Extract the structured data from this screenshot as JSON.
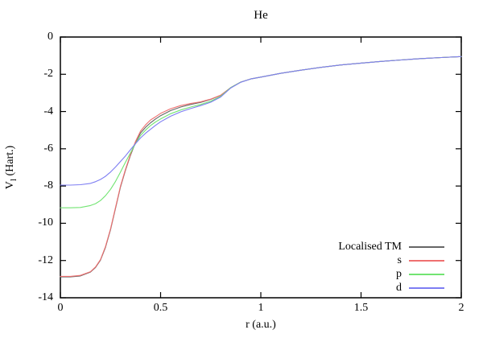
{
  "title": "He",
  "axes": {
    "xlabel": "r (a.u.)",
    "ylabel_base": "V",
    "ylabel_sub": "l",
    "ylabel_rest": " (Hart.)",
    "x_ticks": [
      0,
      0.5,
      1,
      1.5,
      2
    ],
    "x_tick_labels": [
      "0",
      "0.5",
      "1",
      "1.5",
      "2"
    ],
    "y_ticks": [
      0,
      -2,
      -4,
      -6,
      -8,
      -10,
      -12,
      -14
    ],
    "y_tick_labels": [
      "0",
      "-2",
      "-4",
      "-6",
      "-8",
      "-10",
      "-12",
      "-14"
    ]
  },
  "colors": {
    "background": "#ffffff",
    "axis": "#000000",
    "localised_tm": "#666666",
    "s": "#ef7070",
    "p": "#72e472",
    "d": "#7d7df2"
  },
  "chart_data": {
    "type": "line",
    "title": "He",
    "xlabel": "r (a.u.)",
    "ylabel": "V_l (Hart.)",
    "xlim": [
      0,
      2
    ],
    "ylim": [
      -14,
      0
    ],
    "grid": false,
    "legend_position": "bottom-right",
    "x": [
      0,
      0.05,
      0.1,
      0.15,
      0.175,
      0.2,
      0.225,
      0.25,
      0.275,
      0.3,
      0.325,
      0.35,
      0.375,
      0.4,
      0.425,
      0.45,
      0.475,
      0.5,
      0.55,
      0.6,
      0.65,
      0.7,
      0.75,
      0.8,
      0.85,
      0.9,
      0.95,
      1.0,
      1.1,
      1.2,
      1.3,
      1.4,
      1.5,
      1.6,
      1.7,
      1.8,
      1.9,
      2.0
    ],
    "series": [
      {
        "id": "localised-tm",
        "name": "Localised TM",
        "color": "#666666",
        "values": [
          -12.88,
          -12.88,
          -12.83,
          -12.62,
          -12.38,
          -11.98,
          -11.3,
          -10.35,
          -9.2,
          -8.05,
          -7.15,
          -6.35,
          -5.65,
          -5.15,
          -4.85,
          -4.6,
          -4.4,
          -4.22,
          -3.95,
          -3.76,
          -3.62,
          -3.51,
          -3.35,
          -3.13,
          -2.72,
          -2.42,
          -2.25,
          -2.15,
          -1.95,
          -1.78,
          -1.63,
          -1.5,
          -1.4,
          -1.31,
          -1.23,
          -1.16,
          -1.1,
          -1.05
        ]
      },
      {
        "id": "s",
        "name": "s",
        "color": "#ef7070",
        "values": [
          -12.85,
          -12.85,
          -12.8,
          -12.6,
          -12.35,
          -11.95,
          -11.25,
          -10.3,
          -9.15,
          -8.0,
          -7.1,
          -6.3,
          -5.6,
          -5.05,
          -4.72,
          -4.45,
          -4.28,
          -4.1,
          -3.85,
          -3.68,
          -3.57,
          -3.48,
          -3.33,
          -3.12,
          -2.72,
          -2.42,
          -2.25,
          -2.15,
          -1.95,
          -1.78,
          -1.63,
          -1.5,
          -1.4,
          -1.31,
          -1.23,
          -1.16,
          -1.1,
          -1.05
        ]
      },
      {
        "id": "p",
        "name": "p",
        "color": "#72e472",
        "values": [
          -9.17,
          -9.17,
          -9.15,
          -9.05,
          -8.95,
          -8.78,
          -8.52,
          -8.18,
          -7.75,
          -7.25,
          -6.72,
          -6.22,
          -5.72,
          -5.28,
          -5.0,
          -4.75,
          -4.56,
          -4.4,
          -4.12,
          -3.92,
          -3.76,
          -3.62,
          -3.45,
          -3.18,
          -2.72,
          -2.42,
          -2.25,
          -2.15,
          -1.95,
          -1.78,
          -1.63,
          -1.5,
          -1.4,
          -1.31,
          -1.23,
          -1.16,
          -1.1,
          -1.05
        ]
      },
      {
        "id": "d",
        "name": "d",
        "color": "#7d7df2",
        "values": [
          -7.95,
          -7.95,
          -7.93,
          -7.86,
          -7.77,
          -7.65,
          -7.48,
          -7.25,
          -6.98,
          -6.68,
          -6.38,
          -6.05,
          -5.72,
          -5.42,
          -5.17,
          -4.95,
          -4.74,
          -4.55,
          -4.25,
          -4.02,
          -3.84,
          -3.68,
          -3.5,
          -3.22,
          -2.74,
          -2.43,
          -2.25,
          -2.15,
          -1.95,
          -1.78,
          -1.63,
          -1.5,
          -1.4,
          -1.31,
          -1.23,
          -1.16,
          -1.1,
          -1.05
        ]
      }
    ]
  }
}
